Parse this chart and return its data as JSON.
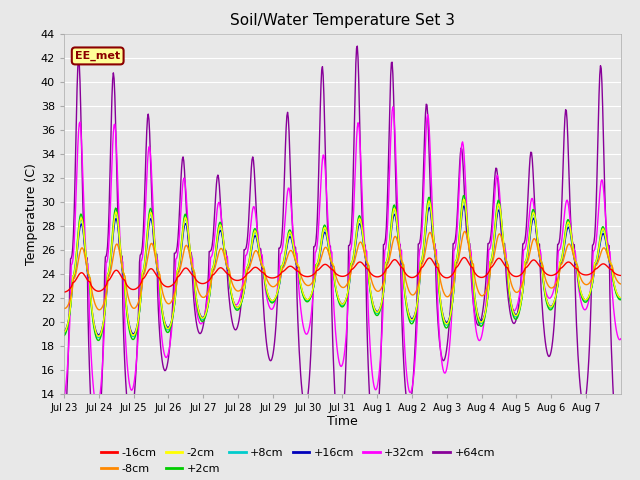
{
  "title": "Soil/Water Temperature Set 3",
  "xlabel": "Time",
  "ylabel": "Temperature (C)",
  "ylim": [
    14,
    44
  ],
  "yticks": [
    14,
    16,
    18,
    20,
    22,
    24,
    26,
    28,
    30,
    32,
    34,
    36,
    38,
    40,
    42,
    44
  ],
  "xtick_labels": [
    "Jul 23",
    "Jul 24",
    "Jul 25",
    "Jul 26",
    "Jul 27",
    "Jul 28",
    "Jul 29",
    "Jul 30",
    "Jul 31",
    "Aug 1",
    "Aug 2",
    "Aug 3",
    "Aug 4",
    "Aug 5",
    "Aug 6",
    "Aug 7"
  ],
  "bg_color": "#e8e8e8",
  "series_colors": {
    "-16cm": "#ff0000",
    "-8cm": "#ff8800",
    "-2cm": "#ffff00",
    "+2cm": "#00cc00",
    "+8cm": "#00cccc",
    "+16cm": "#0000bb",
    "+32cm": "#ff00ff",
    "+64cm": "#880099"
  },
  "annotation_text": "EE_met",
  "grid_color": "#ffffff",
  "title_fontsize": 11
}
